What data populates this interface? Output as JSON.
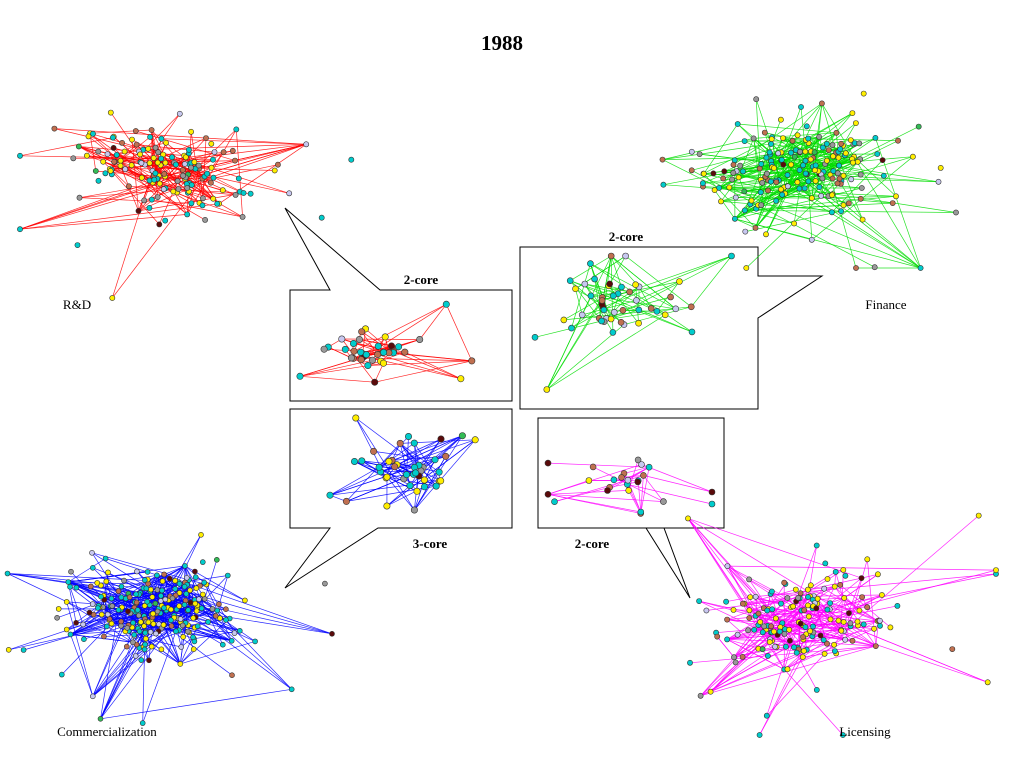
{
  "title": "1988",
  "networks": [
    {
      "id": "rd",
      "label": "R&D",
      "edge_color": "#ff0000"
    },
    {
      "id": "finance",
      "label": "Finance",
      "edge_color": "#00dd00"
    },
    {
      "id": "commercialization",
      "label": "Commercialization",
      "edge_color": "#0000ff"
    },
    {
      "id": "licensing",
      "label": "Licensing",
      "edge_color": "#ff00ff"
    }
  ],
  "cores": [
    {
      "id": "rd-core",
      "network": "rd",
      "label": "2-core"
    },
    {
      "id": "finance-core",
      "network": "finance",
      "label": "2-core"
    },
    {
      "id": "commercialization-core",
      "network": "commercialization",
      "label": "3-core"
    },
    {
      "id": "licensing-core",
      "network": "licensing",
      "label": "2-core"
    }
  ],
  "node_colors": [
    "#00cccc",
    "#ffee00",
    "#c07050",
    "#999999",
    "#c8c8f0",
    "#5a0a0a",
    "#33bb55"
  ]
}
